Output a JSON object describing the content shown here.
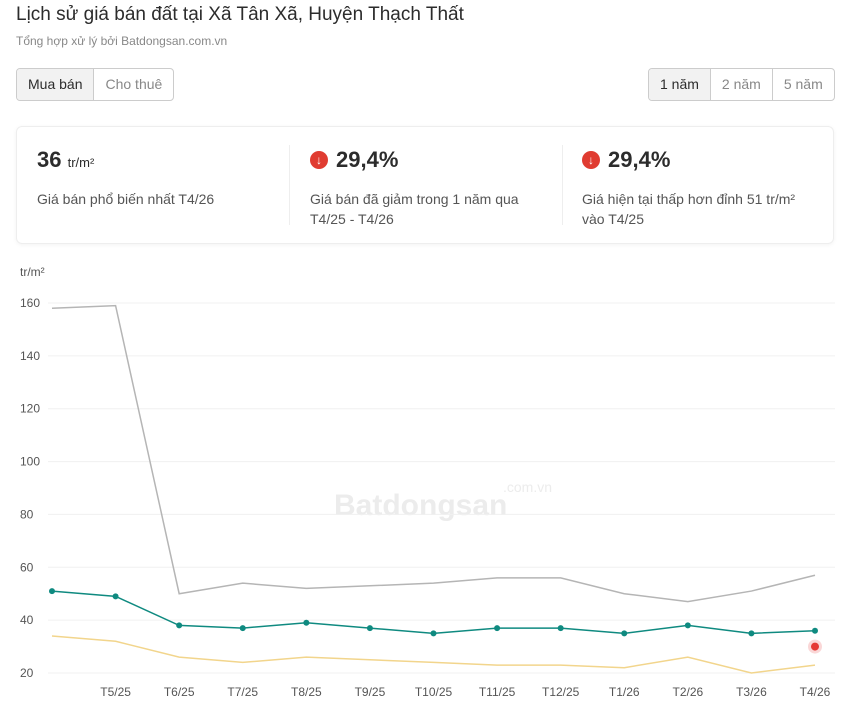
{
  "header": {
    "title": "Lịch sử giá bán đất tại Xã Tân Xã, Huyện Thạch Thất",
    "subtitle": "Tổng hợp xử lý bởi Batdongsan.com.vn"
  },
  "tabs": [
    "Mua bán",
    "Cho thuê"
  ],
  "periods": [
    "1 năm",
    "2 năm",
    "5 năm"
  ],
  "stats": [
    {
      "value": "36",
      "unit": "tr/m²",
      "lines": [
        "Giá bán phổ biến nhất T4/26"
      ]
    },
    {
      "value": "29,4%",
      "lines": [
        "Giá bán đã giảm trong 1 năm qua",
        "T4/25 - T4/26"
      ]
    },
    {
      "value": "29,4%",
      "lines": [
        "Giá hiện tại thấp hơn đỉnh 51 tr/m²",
        "vào T4/25"
      ]
    }
  ],
  "watermark": {
    "brand": "Batdongsan",
    "domain": ".com.vn"
  },
  "chart_data": {
    "type": "line",
    "y_label": "tr/m²",
    "categories": [
      null,
      "T5/25",
      "T6/25",
      "T7/25",
      "T8/25",
      "T9/25",
      "T10/25",
      "T11/25",
      "T12/25",
      "T1/26",
      "T2/26",
      "T3/26",
      "T4/26"
    ],
    "series": [
      {
        "color": "#b5b5b5",
        "values": [
          158,
          159,
          50,
          54,
          52,
          53,
          54,
          56,
          56,
          50,
          47,
          51,
          57
        ]
      },
      {
        "color": "#0f8a80",
        "values": [
          51,
          49,
          38,
          37,
          39,
          37,
          35,
          37,
          37,
          35,
          38,
          35,
          36
        ],
        "markers": true
      },
      {
        "color": "#f2d58c",
        "values": [
          34,
          32,
          26,
          24,
          26,
          25,
          24,
          23,
          23,
          22,
          26,
          20,
          23
        ]
      }
    ],
    "point": {
      "value": 30,
      "color": "#e53935"
    },
    "ylim": [
      20,
      160
    ],
    "yticks": [
      20,
      40,
      60,
      80,
      100,
      120,
      140,
      160
    ],
    "grid": true
  }
}
